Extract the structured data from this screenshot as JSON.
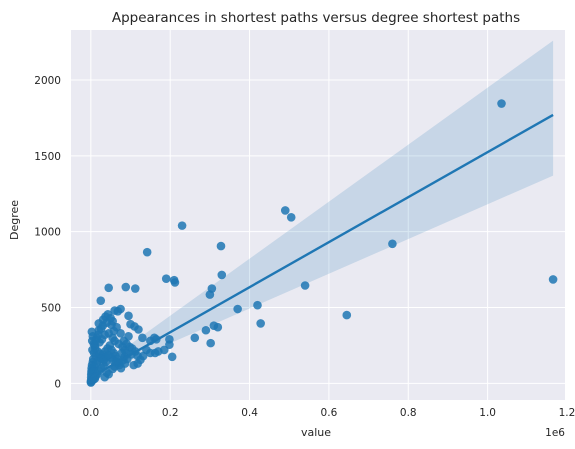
{
  "chart_data": {
    "type": "scatter",
    "title": "Appearances in shortest paths versus degree shortest paths",
    "xlabel": "value",
    "ylabel": "Degree",
    "x_offset_label": "1e6",
    "xlim": [
      -50000,
      1195000
    ],
    "ylim": [
      -110,
      2330
    ],
    "xticks": [
      0,
      200000,
      400000,
      600000,
      800000,
      1000000,
      1200000
    ],
    "xtick_labels": [
      "0.0",
      "0.2",
      "0.4",
      "0.6",
      "0.8",
      "1.0",
      "1.2"
    ],
    "yticks": [
      0,
      500,
      1000,
      1500,
      2000
    ],
    "ytick_labels": [
      "0",
      "500",
      "1000",
      "1500",
      "2000"
    ],
    "grid": true,
    "colors": {
      "background": "#eaeaf2",
      "grid": "#ffffff",
      "point": "#1f77b4",
      "line": "#1f77b4",
      "band": "#1f77b4"
    },
    "regression": {
      "x": [
        0,
        1165000
      ],
      "y": [
        40,
        1770
      ],
      "ci_x": [
        0,
        1165000
      ],
      "ci_lower": [
        35,
        1370
      ],
      "ci_upper": [
        70,
        2260
      ]
    },
    "points": [
      [
        1035000,
        1845
      ],
      [
        1165000,
        685
      ],
      [
        760000,
        920
      ],
      [
        645000,
        450
      ],
      [
        540000,
        645
      ],
      [
        490000,
        1140
      ],
      [
        505000,
        1095
      ],
      [
        420000,
        515
      ],
      [
        428000,
        395
      ],
      [
        370000,
        490
      ],
      [
        328000,
        905
      ],
      [
        330000,
        715
      ],
      [
        305000,
        625
      ],
      [
        300000,
        585
      ],
      [
        310000,
        380
      ],
      [
        320000,
        370
      ],
      [
        290000,
        350
      ],
      [
        302000,
        265
      ],
      [
        262000,
        300
      ],
      [
        230000,
        1040
      ],
      [
        210000,
        680
      ],
      [
        212000,
        665
      ],
      [
        190000,
        690
      ],
      [
        198000,
        290
      ],
      [
        198000,
        255
      ],
      [
        205000,
        175
      ],
      [
        185000,
        220
      ],
      [
        170000,
        210
      ],
      [
        142000,
        865
      ],
      [
        112000,
        625
      ],
      [
        88000,
        635
      ],
      [
        45000,
        630
      ],
      [
        25000,
        545
      ],
      [
        75000,
        490
      ],
      [
        68000,
        475
      ],
      [
        60000,
        480
      ],
      [
        95000,
        445
      ],
      [
        100000,
        390
      ],
      [
        110000,
        375
      ],
      [
        120000,
        355
      ],
      [
        95000,
        310
      ],
      [
        130000,
        300
      ],
      [
        150000,
        280
      ],
      [
        160000,
        300
      ],
      [
        165000,
        290
      ],
      [
        140000,
        220
      ],
      [
        150000,
        200
      ],
      [
        162000,
        200
      ],
      [
        132000,
        180
      ],
      [
        125000,
        155
      ],
      [
        118000,
        130
      ],
      [
        108000,
        120
      ],
      [
        85000,
        175
      ],
      [
        80000,
        150
      ],
      [
        70000,
        135
      ],
      [
        60000,
        110
      ],
      [
        55000,
        95
      ],
      [
        45000,
        60
      ],
      [
        40000,
        70
      ],
      [
        35000,
        40
      ],
      [
        50000,
        430
      ],
      [
        40000,
        400
      ],
      [
        30000,
        380
      ],
      [
        20000,
        395
      ],
      [
        20000,
        350
      ],
      [
        45000,
        330
      ],
      [
        55000,
        300
      ],
      [
        60000,
        280
      ],
      [
        70000,
        260
      ],
      [
        80000,
        240
      ],
      [
        85000,
        220
      ],
      [
        90000,
        200
      ],
      [
        75000,
        330
      ],
      [
        65000,
        370
      ],
      [
        55000,
        410
      ],
      [
        35000,
        320
      ],
      [
        28000,
        290
      ],
      [
        22000,
        270
      ],
      [
        15000,
        300
      ],
      [
        10000,
        250
      ],
      [
        8000,
        200
      ],
      [
        12000,
        180
      ],
      [
        6000,
        160
      ],
      [
        5000,
        140
      ],
      [
        3000,
        120
      ],
      [
        2000,
        100
      ],
      [
        1500,
        80
      ],
      [
        1000,
        60
      ],
      [
        800,
        40
      ],
      [
        500,
        20
      ],
      [
        300,
        10
      ],
      [
        200,
        5
      ],
      [
        4000,
        75
      ],
      [
        7000,
        90
      ],
      [
        9000,
        110
      ],
      [
        14000,
        130
      ],
      [
        18000,
        150
      ],
      [
        24000,
        170
      ],
      [
        30000,
        190
      ],
      [
        36000,
        210
      ],
      [
        42000,
        230
      ],
      [
        48000,
        250
      ],
      [
        52000,
        220
      ],
      [
        58000,
        200
      ],
      [
        62000,
        180
      ],
      [
        66000,
        160
      ],
      [
        38000,
        140
      ],
      [
        32000,
        120
      ],
      [
        26000,
        100
      ],
      [
        20000,
        80
      ],
      [
        16000,
        60
      ],
      [
        12000,
        45
      ],
      [
        10000,
        30
      ],
      [
        6000,
        25
      ],
      [
        3000,
        15
      ],
      [
        2500,
        340
      ],
      [
        5000,
        310
      ],
      [
        3500,
        280
      ],
      [
        11000,
        230
      ],
      [
        17000,
        210
      ],
      [
        23000,
        195
      ],
      [
        27000,
        165
      ],
      [
        33000,
        155
      ],
      [
        39000,
        175
      ],
      [
        44000,
        185
      ],
      [
        50000,
        170
      ],
      [
        57000,
        150
      ],
      [
        64000,
        140
      ],
      [
        72000,
        120
      ],
      [
        78000,
        200
      ],
      [
        83000,
        280
      ],
      [
        90000,
        260
      ],
      [
        98000,
        240
      ],
      [
        104000,
        230
      ],
      [
        112000,
        210
      ],
      [
        118000,
        180
      ],
      [
        102000,
        190
      ],
      [
        92000,
        160
      ],
      [
        86000,
        130
      ],
      [
        76000,
        100
      ],
      [
        4000,
        220
      ],
      [
        7500,
        260
      ],
      [
        13000,
        285
      ],
      [
        19000,
        320
      ],
      [
        26000,
        360
      ],
      [
        31000,
        420
      ],
      [
        37000,
        440
      ],
      [
        43000,
        455
      ],
      [
        52000,
        385
      ],
      [
        58000,
        345
      ]
    ]
  }
}
